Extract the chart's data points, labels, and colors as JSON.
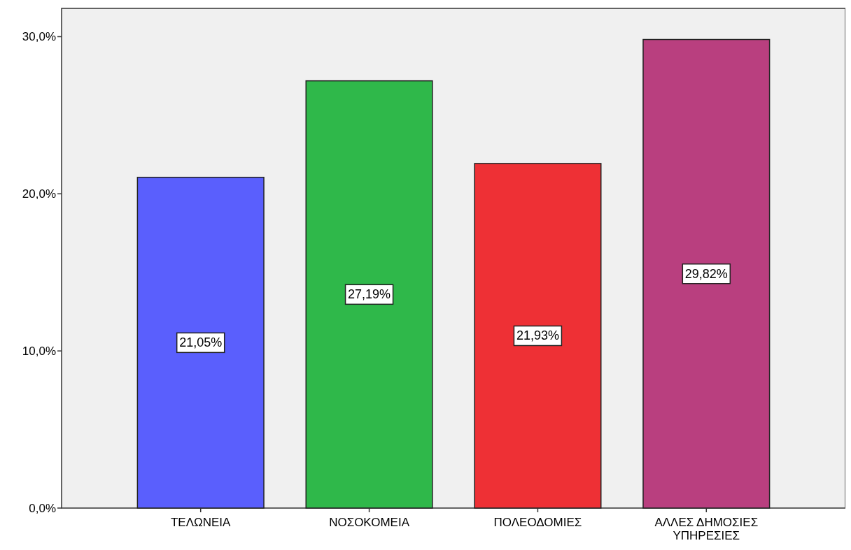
{
  "chart_data": {
    "type": "bar",
    "categories": [
      "ΤΕΛΩΝΕΙΑ",
      "ΝΟΣΟΚΟΜΕΙΑ",
      "ΠΟΛΕΟΔΟΜΙΕΣ",
      "ΑΛΛΕΣ ΔΗΜΟΣΙΕΣ ΥΠΗΡΕΣΙΕΣ"
    ],
    "values": [
      21.05,
      27.19,
      21.93,
      29.82
    ],
    "colors": [
      "#5a5ffd",
      "#2fb84a",
      "#ee3035",
      "#b93f7f"
    ],
    "value_labels": [
      "21,05%",
      "27,19%",
      "21,93%",
      "29,82%"
    ],
    "ylim": [
      0,
      31.8
    ],
    "yticks": [
      {
        "value": 0,
        "label": "0,0%"
      },
      {
        "value": 10,
        "label": "10,0%"
      },
      {
        "value": 20,
        "label": "20,0%"
      },
      {
        "value": 30,
        "label": "30,0%"
      }
    ],
    "grid": false
  }
}
